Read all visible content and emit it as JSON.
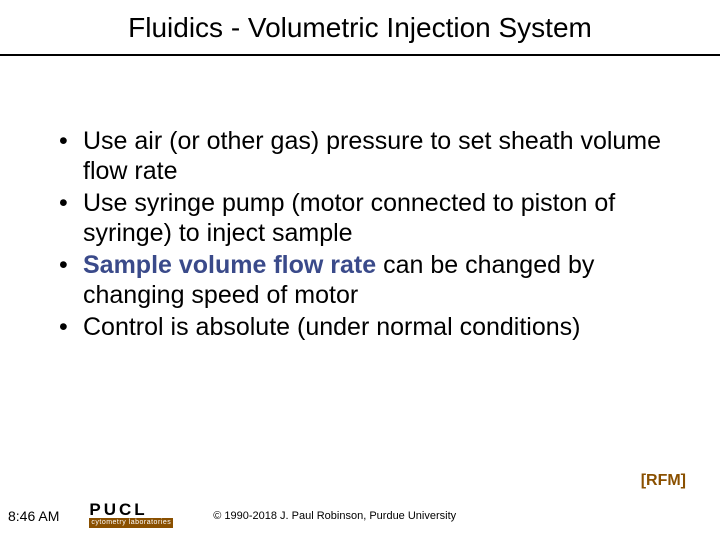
{
  "title": "Fluidics - Volumetric Injection System",
  "bullets": [
    {
      "pre": "Use air (or other gas) pressure to set sheath volume flow rate",
      "em": "",
      "post": ""
    },
    {
      "pre": "Use syringe pump (motor connected to piston of syringe) to inject sample",
      "em": "",
      "post": ""
    },
    {
      "pre": "",
      "em": "Sample volume flow rate",
      "post": " can be changed by changing speed of motor"
    },
    {
      "pre": "Control is absolute (under normal conditions)",
      "em": "",
      "post": ""
    }
  ],
  "attribution": "[RFM]",
  "time": "8:46 AM",
  "logo": {
    "top": "PUCL",
    "bottom": "cytometry laboratories"
  },
  "copyright": "© 1990-2018  J. Paul Robinson, Purdue University",
  "colors": {
    "emphasis": "#3a4a8a",
    "attribution": "#8a5000",
    "logo_bg": "#8a5000",
    "text": "#000000",
    "background": "#ffffff"
  },
  "typography": {
    "title_fontsize": 28,
    "bullet_fontsize": 25,
    "attribution_fontsize": 16,
    "time_fontsize": 14,
    "copyright_fontsize": 11
  }
}
